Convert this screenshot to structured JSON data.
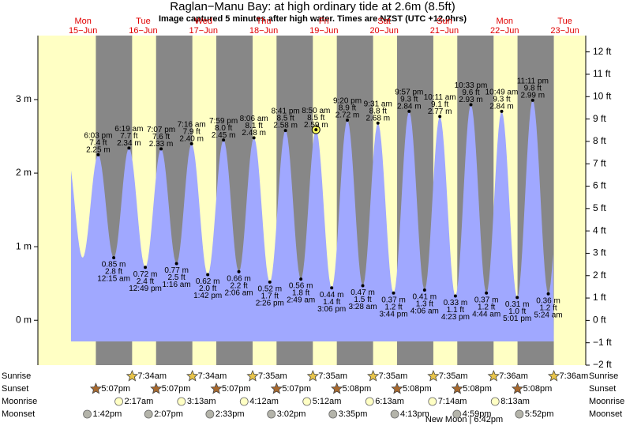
{
  "chart_data": {
    "type": "tide",
    "title": "Raglan−Manu Bay: at high  ordinary tide at 2.6m (8.5ft)",
    "subtitle": "Image captured 5 minutes after high water. Times are NZST (UTC +12.0hrs)",
    "days": [
      {
        "day": "Mon",
        "date": "15−Jun"
      },
      {
        "day": "Tue",
        "date": "16−Jun"
      },
      {
        "day": "Wed",
        "date": "17−Jun"
      },
      {
        "day": "Thu",
        "date": "18−Jun"
      },
      {
        "day": "Fri",
        "date": "19−Jun"
      },
      {
        "day": "Sat",
        "date": "20−Jun"
      },
      {
        "day": "Sun",
        "date": "21−Jun"
      },
      {
        "day": "Mon",
        "date": "22−Jun"
      },
      {
        "day": "Tue",
        "date": "23−Jun"
      }
    ],
    "times": [
      "6:03 pm",
      "12:15 am",
      "6:19 am",
      "12:49 pm",
      "7:07 pm",
      "1:16 am",
      "7:16 am",
      "1:42 pm",
      "7:59 pm",
      "2:06 am",
      "8:06 am",
      "2:26 pm",
      "8:41 pm",
      "2:49 am",
      "8:50 am",
      "3:06 pm",
      "9:20 pm",
      "3:28 am",
      "9:31 am",
      "3:44 pm",
      "9:57 pm",
      "4:06 am",
      "10:11 am",
      "4:23 pm",
      "10:33 pm",
      "4:44 am",
      "10:49 am",
      "5:01 pm",
      "11:11 pm",
      "5:24 am"
    ],
    "values": [
      2.25,
      0.85,
      2.34,
      0.72,
      2.33,
      0.77,
      2.4,
      0.62,
      2.45,
      0.66,
      2.48,
      0.52,
      2.58,
      0.56,
      2.59,
      0.44,
      2.72,
      0.47,
      2.68,
      0.37,
      2.84,
      0.41,
      2.77,
      0.33,
      2.93,
      0.37,
      2.84,
      0.31,
      2.99,
      0.36
    ],
    "value_labels": [
      "2.25 m",
      "0.85 m",
      "2.34 m",
      "0.72 m",
      "2.33 m",
      "0.77 m",
      "2.40 m",
      "0.62 m",
      "2.45 m",
      "0.66 m",
      "2.48 m",
      "0.52 m",
      "2.58 m",
      "0.56 m",
      "2.59 m",
      "0.44 m",
      "2.72 m",
      "0.47 m",
      "2.68 m",
      "0.37 m",
      "2.84 m",
      "0.41 m",
      "2.77 m",
      "0.33 m",
      "2.93 m",
      "0.37 m",
      "2.84 m",
      "0.31 m",
      "2.99 m",
      "0.36 m"
    ],
    "ft_labels": [
      "7.4 ft",
      "2.8 ft",
      "7.7 ft",
      "2.4 ft",
      "7.6 ft",
      "2.5 ft",
      "7.9 ft",
      "2.0 ft",
      "8.0 ft",
      "2.2 ft",
      "8.1 ft",
      "1.7 ft",
      "8.5 ft",
      "1.8 ft",
      "8.5 ft",
      "1.4 ft",
      "8.9 ft",
      "1.5 ft",
      "8.8 ft",
      "1.2 ft",
      "9.3 ft",
      "1.3 ft",
      "9.1 ft",
      "1.1 ft",
      "9.6 ft",
      "1.2 ft",
      "9.3 ft",
      "1.0 ft",
      "9.8 ft",
      "1.2 ft"
    ],
    "color": "#a0a8ff",
    "day_color": "#ffffc4",
    "night_color": "#878787",
    "ylim": [
      -0.61,
      3.87
    ],
    "yticks": [
      {
        "value": 0,
        "label": "0 m"
      },
      {
        "value": 1,
        "label": "1 m"
      },
      {
        "value": 2,
        "label": "2 m"
      },
      {
        "value": 3,
        "label": "3 m"
      }
    ],
    "y2lim": [
      -2,
      12.73
    ],
    "y2ticks": [
      {
        "value": -2,
        "label": "−2 ft"
      },
      {
        "value": -1,
        "label": "−1 ft"
      },
      {
        "value": 0,
        "label": "0 ft"
      },
      {
        "value": 1,
        "label": "1 ft"
      },
      {
        "value": 2,
        "label": "2 ft"
      },
      {
        "value": 3,
        "label": "3 ft"
      },
      {
        "value": 4,
        "label": "4 ft"
      },
      {
        "value": 5,
        "label": "5 ft"
      },
      {
        "value": 6,
        "label": "6 ft"
      },
      {
        "value": 7,
        "label": "7 ft"
      },
      {
        "value": 8,
        "label": "8 ft"
      },
      {
        "value": 9,
        "label": "9 ft"
      },
      {
        "value": 10,
        "label": "10 ft"
      },
      {
        "value": 11,
        "label": "11 ft"
      },
      {
        "value": 12,
        "label": "12 ft"
      }
    ],
    "events": [
      {
        "name": "Sunrise",
        "times": [
          null,
          "7:34am",
          "7:34am",
          "7:35am",
          "7:35am",
          "7:35am",
          "7:35am",
          "7:36am",
          "7:36am"
        ]
      },
      {
        "name": "Sunset",
        "times": [
          "5:07pm",
          "5:07pm",
          "5:07pm",
          "5:07pm",
          "5:08pm",
          "5:08pm",
          "5:08pm",
          "5:08pm",
          null
        ]
      },
      {
        "name": "Moonrise",
        "times": [
          null,
          "2:17am",
          "3:13am",
          "4:12am",
          "5:12am",
          "6:13am",
          "7:14am",
          "8:13am",
          null
        ]
      },
      {
        "name": "Moonset",
        "times": [
          "1:42pm",
          "2:07pm",
          "2:33pm",
          "3:02pm",
          "3:35pm",
          "4:13pm",
          "4:59pm",
          "5:52pm",
          null
        ]
      }
    ],
    "note": "New Moon | 6:42pm"
  }
}
